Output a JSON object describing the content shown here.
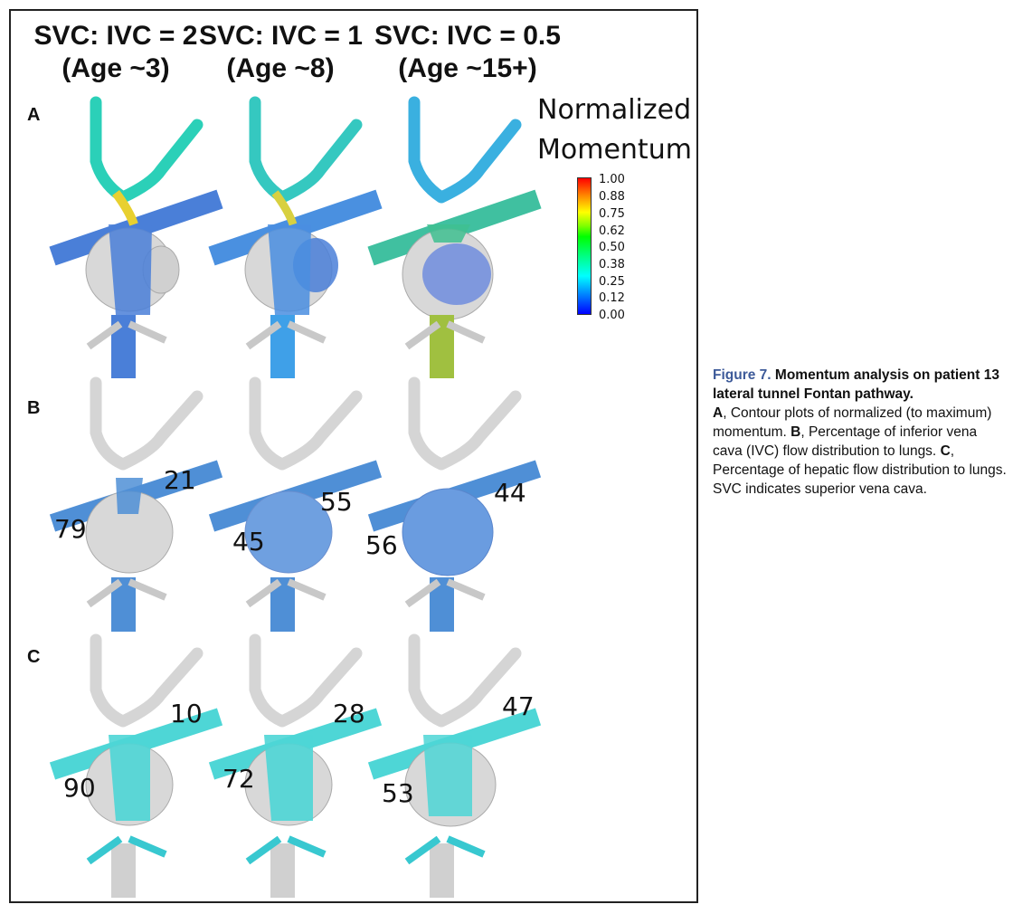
{
  "columns": [
    {
      "ratio": "SVC: IVC = 2",
      "age": "(Age ~3)"
    },
    {
      "ratio": "SVC: IVC = 1",
      "age": "(Age ~8)"
    },
    {
      "ratio": "SVC: IVC = 0.5",
      "age": "(Age ~15+)"
    }
  ],
  "rows": {
    "a": "A",
    "b": "B",
    "c": "C"
  },
  "legend": {
    "title_line1": "Normalized",
    "title_line2": "Momentum",
    "ticks": [
      "1.00",
      "0.88",
      "0.75",
      "0.62",
      "0.50",
      "0.38",
      "0.25",
      "0.12",
      "0.00"
    ]
  },
  "row_b_values": [
    {
      "left": "79",
      "right": "21"
    },
    {
      "left": "45",
      "right": "55"
    },
    {
      "left": "56",
      "right": "44"
    }
  ],
  "row_c_values": [
    {
      "left": "90",
      "right": "10"
    },
    {
      "left": "72",
      "right": "28"
    },
    {
      "left": "53",
      "right": "47"
    }
  ],
  "caption": {
    "label": "Figure 7.",
    "title": "Momentum analysis on patient 13 lateral tunnel Fontan pathway.",
    "a_letter": "A",
    "a_text": ", Contour plots of normalized (to maximum) momentum. ",
    "b_letter": "B",
    "b_text": ", Percentage of inferior vena cava (IVC) flow distribution to lungs. ",
    "c_letter": "C",
    "c_text": ", Percentage of hepatic flow distribution to lungs. SVC indicates superior vena cava."
  },
  "colors": {
    "row_a_fill": "#4a7fd8",
    "row_b_fill": "#4f8fd6",
    "row_c_fill": "#4ed6d6",
    "vessel_gray": "#d8d8d8",
    "caption_accent": "#3d5a99"
  }
}
